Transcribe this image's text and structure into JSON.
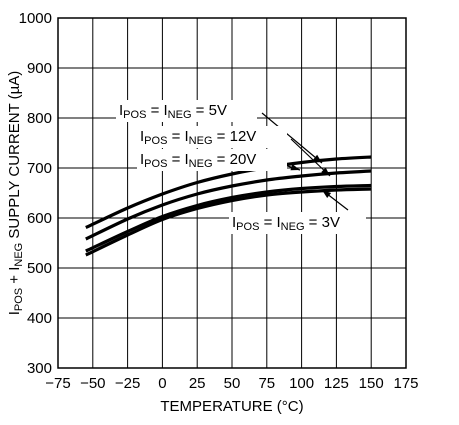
{
  "chart_data": {
    "type": "line",
    "xlabel": "TEMPERATURE (°C)",
    "ylabel": {
      "parts": [
        {
          "text": "I",
          "sub": false
        },
        {
          "text": "POS",
          "sub": true
        },
        {
          "text": " + I",
          "sub": false
        },
        {
          "text": "NEG",
          "sub": true
        },
        {
          "text": " SUPPLY CURRENT (µA)",
          "sub": false
        }
      ]
    },
    "xlim": [
      -75,
      175
    ],
    "ylim": [
      300,
      1000
    ],
    "xticks": [
      -75,
      -50,
      -25,
      0,
      25,
      50,
      75,
      100,
      125,
      150,
      175
    ],
    "yticks": [
      300,
      400,
      500,
      600,
      700,
      800,
      900,
      1000
    ],
    "xtick_labels": [
      "−75",
      "−50",
      "−25",
      "0",
      "25",
      "50",
      "75",
      "100",
      "125",
      "150",
      "175"
    ],
    "ytick_labels": [
      "300",
      "400",
      "500",
      "600",
      "700",
      "800",
      "900",
      "1000"
    ],
    "grid": true,
    "series": [
      {
        "name": "5V",
        "x": [
          -55,
          -25,
          0,
          25,
          50,
          75,
          100,
          125,
          150
        ],
        "y": [
          581,
          620,
          648,
          671,
          688,
          701,
          711,
          718,
          722
        ]
      },
      {
        "name": "12V",
        "x": [
          -55,
          -25,
          0,
          25,
          50,
          75,
          100,
          125,
          150
        ],
        "y": [
          558,
          598,
          626,
          648,
          664,
          676,
          684,
          690,
          694
        ]
      },
      {
        "name": "20V",
        "x": [
          -55,
          -25,
          0,
          25,
          50,
          75,
          100,
          125,
          150
        ],
        "y": [
          534,
          573,
          603,
          625,
          641,
          652,
          659,
          663,
          665
        ]
      },
      {
        "name": "3V",
        "x": [
          -55,
          -25,
          0,
          25,
          50,
          75,
          100,
          125,
          150
        ],
        "y": [
          526,
          566,
          597,
          619,
          635,
          646,
          652,
          656,
          658
        ]
      }
    ],
    "annotations": [
      {
        "label": "5V",
        "parts": [
          {
            "text": "I",
            "sub": false
          },
          {
            "text": "POS",
            "sub": true
          },
          {
            "text": " = I",
            "sub": false
          },
          {
            "text": "NEG",
            "sub": true
          },
          {
            "text": " = 5V",
            "sub": false
          }
        ]
      },
      {
        "label": "12V",
        "parts": [
          {
            "text": "I",
            "sub": false
          },
          {
            "text": "POS",
            "sub": true
          },
          {
            "text": " = I",
            "sub": false
          },
          {
            "text": "NEG",
            "sub": true
          },
          {
            "text": " = 12V",
            "sub": false
          }
        ]
      },
      {
        "label": "20V",
        "parts": [
          {
            "text": "I",
            "sub": false
          },
          {
            "text": "POS",
            "sub": true
          },
          {
            "text": " = I",
            "sub": false
          },
          {
            "text": "NEG",
            "sub": true
          },
          {
            "text": " = 20V",
            "sub": false
          }
        ]
      },
      {
        "label": "3V",
        "parts": [
          {
            "text": "I",
            "sub": false
          },
          {
            "text": "POS",
            "sub": true
          },
          {
            "text": " = I",
            "sub": false
          },
          {
            "text": "NEG",
            "sub": true
          },
          {
            "text": " = 3V",
            "sub": false
          }
        ]
      }
    ]
  }
}
